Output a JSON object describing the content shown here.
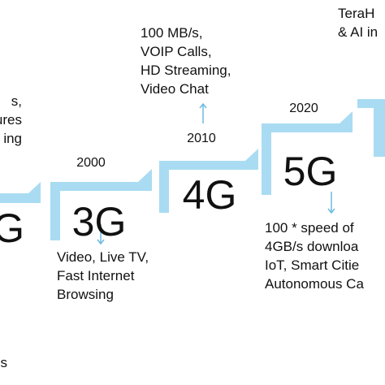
{
  "left": {
    "lines": [
      "s,",
      "ures",
      "ing"
    ],
    "gen": "G",
    "bottom": "s"
  },
  "g3": {
    "year": "2000",
    "gen": "3G",
    "lines": [
      "Video, Live TV,",
      "Fast Internet",
      "Browsing"
    ]
  },
  "g4": {
    "year": "2010",
    "gen": "4G",
    "lines": [
      "100 MB/s,",
      "VOIP Calls,",
      "HD Streaming,",
      "Video Chat"
    ]
  },
  "g5": {
    "year": "2020",
    "gen": "5G",
    "lines": [
      "100 * speed of",
      "4GB/s downloa",
      "IoT, Smart Citie",
      "Autonomous Ca"
    ]
  },
  "g6": {
    "lines": [
      "TeraH",
      "& AI in"
    ]
  }
}
